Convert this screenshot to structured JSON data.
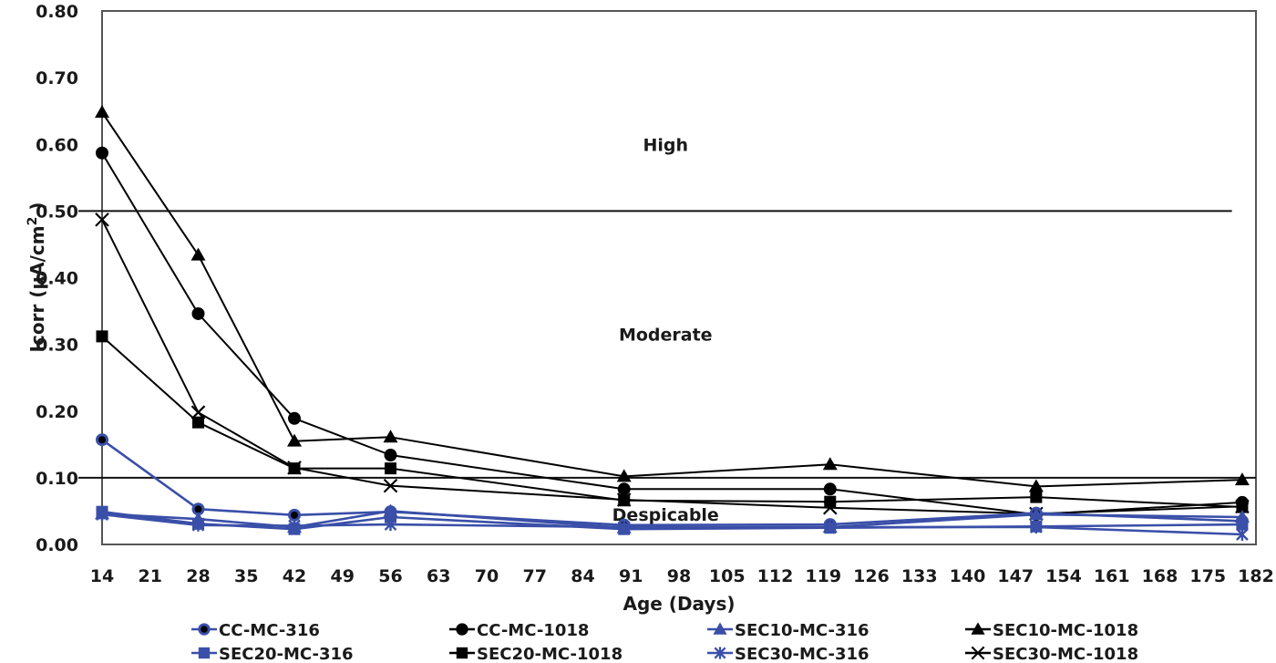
{
  "chart_data": {
    "type": "line",
    "title": "",
    "xlabel": "Age (Days)",
    "ylabel": "Icorr (µA/cm² )",
    "ylabel_main": "Icorr (µA/cm",
    "ylabel_sup": "2",
    "ylabel_tail": " )",
    "xlim": [
      14,
      182
    ],
    "ylim": [
      0,
      0.8
    ],
    "x_ticks": [
      14,
      21,
      28,
      35,
      42,
      49,
      56,
      63,
      70,
      77,
      84,
      91,
      98,
      105,
      112,
      119,
      126,
      133,
      140,
      147,
      154,
      161,
      168,
      175,
      182
    ],
    "y_ticks": [
      "0.00",
      "0.10",
      "0.20",
      "0.30",
      "0.40",
      "0.50",
      "0.60",
      "0.70",
      "0.80"
    ],
    "grid": false,
    "legend_position": "bottom",
    "threshold_lines": [
      {
        "value": 0.5,
        "x_range": [
          14,
          178.5
        ]
      },
      {
        "value": 0.1,
        "x_range": [
          14,
          182
        ]
      }
    ],
    "zone_labels": [
      {
        "text": "High",
        "x": 91,
        "y": 0.6
      },
      {
        "text": "Moderate",
        "x": 91,
        "y": 0.315
      },
      {
        "text": "Despicable",
        "x": 91,
        "y": 0.045
      }
    ],
    "x": [
      14,
      28,
      42,
      56,
      90,
      120,
      150,
      180
    ],
    "series": [
      {
        "name": "CC-MC-316",
        "color": "#3a4fa8",
        "marker": "circle-dot",
        "values": [
          0.157,
          0.053,
          0.044,
          0.049,
          0.029,
          0.03,
          0.047,
          0.035
        ]
      },
      {
        "name": "CC-MC-1018",
        "color": "#000000",
        "marker": "circle",
        "values": [
          0.587,
          0.346,
          0.189,
          0.134,
          0.083,
          0.083,
          0.045,
          0.063
        ]
      },
      {
        "name": "SEC10-MC-316",
        "color": "#3a4fa8",
        "marker": "triangle",
        "values": [
          0.046,
          0.038,
          0.026,
          0.05,
          0.025,
          0.026,
          0.045,
          0.041
        ]
      },
      {
        "name": "SEC10-MC-1018",
        "color": "#000000",
        "marker": "triangle",
        "values": [
          0.648,
          0.434,
          0.155,
          0.161,
          0.102,
          0.12,
          0.087,
          0.097
        ]
      },
      {
        "name": "SEC20-MC-316",
        "color": "#3a4fa8",
        "marker": "square",
        "values": [
          0.049,
          0.031,
          0.023,
          0.041,
          0.023,
          0.025,
          0.027,
          0.03
        ]
      },
      {
        "name": "SEC20-MC-1018",
        "color": "#000000",
        "marker": "square",
        "values": [
          0.312,
          0.183,
          0.114,
          0.114,
          0.066,
          0.064,
          0.071,
          0.056
        ]
      },
      {
        "name": "SEC30-MC-316",
        "color": "#3a4fa8",
        "marker": "asterisk",
        "values": [
          0.045,
          0.029,
          0.028,
          0.03,
          0.026,
          0.026,
          0.026,
          0.015
        ]
      },
      {
        "name": "SEC30-MC-1018",
        "color": "#000000",
        "marker": "x",
        "values": [
          0.487,
          0.198,
          0.115,
          0.088,
          0.067,
          0.055,
          0.046,
          0.057
        ]
      }
    ]
  }
}
